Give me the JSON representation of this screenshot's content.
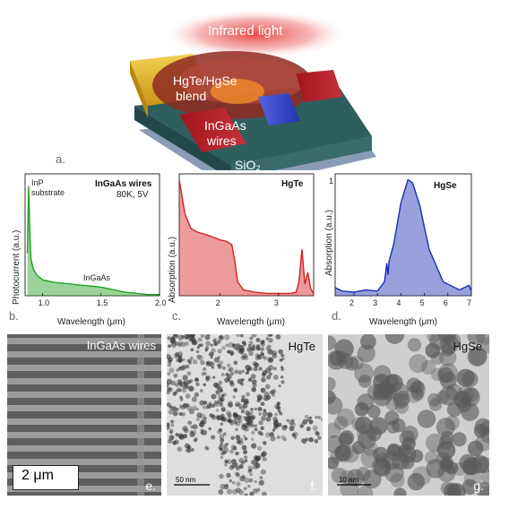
{
  "panel_a": {
    "letter": "a.",
    "light_label": "Infrared light",
    "blend_label_line1": "HgTe/HgSe",
    "blend_label_line2": "blend",
    "wires_label_line1": "InGaAs",
    "wires_label_line2": "wires",
    "substrate_label": "SiO₂"
  },
  "panel_b": {
    "letter": "b.",
    "chart_title": "InGaAs wires",
    "subtitle": "80K, 5V",
    "ylabel": "Photocurrent (a.u.)",
    "xlabel": "Wavelength (μm)",
    "annot_substrate_1": "InP",
    "annot_substrate_2": "substrate",
    "annot_ingaas": "InGaAs",
    "color": "#22a020"
  },
  "panel_c": {
    "letter": "c.",
    "chart_title": "HgTe",
    "ylabel": "Absorption (a.u.)",
    "xlabel": "Wavelength (μm)",
    "color": "#d42020"
  },
  "panel_d": {
    "letter": "d.",
    "chart_title": "HgSe",
    "ylabel": "Absorption (a.u.)",
    "xlabel": "Wavelength (μm)",
    "ytick_top": "1",
    "color": "#1a2fb0"
  },
  "panel_e": {
    "letter": "e.",
    "title": "InGaAs wires",
    "scale": "2 μm"
  },
  "panel_f": {
    "letter": "f.",
    "title": "HgTe",
    "scale": "50 nm"
  },
  "panel_g": {
    "letter": "g.",
    "title": "HgSe",
    "scale": "10 nm"
  },
  "chart_data": [
    {
      "type": "area",
      "title": "InGaAs wires",
      "xlabel": "Wavelength (μm)",
      "ylabel": "Photocurrent (a.u.)",
      "xlim": [
        0.85,
        2.0
      ],
      "xticks": [
        "1.0",
        "1.5",
        "2.0"
      ],
      "x": [
        0.87,
        0.88,
        0.89,
        0.9,
        0.92,
        0.95,
        1.0,
        1.1,
        1.2,
        1.3,
        1.4,
        1.5,
        1.6,
        1.7,
        1.8,
        1.9,
        2.0
      ],
      "y": [
        0.35,
        0.9,
        0.55,
        0.3,
        0.22,
        0.17,
        0.13,
        0.11,
        0.1,
        0.09,
        0.08,
        0.07,
        0.05,
        0.03,
        0.02,
        0.01,
        0.01
      ]
    },
    {
      "type": "area",
      "title": "HgTe",
      "xlabel": "Wavelength (μm)",
      "ylabel": "Absorption (a.u.)",
      "xlim": [
        1.3,
        3.6
      ],
      "xticks": [
        "2",
        "3"
      ],
      "x": [
        1.3,
        1.4,
        1.5,
        1.6,
        1.8,
        2.0,
        2.1,
        2.2,
        2.25,
        2.3,
        2.4,
        2.6,
        2.8,
        3.0,
        3.2,
        3.3,
        3.35,
        3.4,
        3.45,
        3.5,
        3.55,
        3.6
      ],
      "y": [
        1.0,
        0.7,
        0.58,
        0.55,
        0.52,
        0.48,
        0.47,
        0.44,
        0.3,
        0.12,
        0.05,
        0.03,
        0.02,
        0.02,
        0.02,
        0.03,
        0.12,
        0.4,
        0.1,
        0.2,
        0.06,
        0.02
      ]
    },
    {
      "type": "area",
      "title": "HgSe",
      "xlabel": "Wavelength (μm)",
      "ylabel": "Absorption (a.u.)",
      "xlim": [
        1.2,
        7.0
      ],
      "ylim": [
        0,
        1
      ],
      "xticks": [
        "2",
        "3",
        "4",
        "5",
        "6",
        "7"
      ],
      "x": [
        1.2,
        1.5,
        2.0,
        2.5,
        3.0,
        3.3,
        3.4,
        3.45,
        3.5,
        3.7,
        4.0,
        4.3,
        4.5,
        4.8,
        5.2,
        5.8,
        6.5,
        6.9,
        7.0
      ],
      "y": [
        0.07,
        0.04,
        0.03,
        0.05,
        0.04,
        0.12,
        0.28,
        0.18,
        0.3,
        0.45,
        0.8,
        1.0,
        0.97,
        0.78,
        0.4,
        0.12,
        0.05,
        0.09,
        0.04
      ]
    }
  ]
}
